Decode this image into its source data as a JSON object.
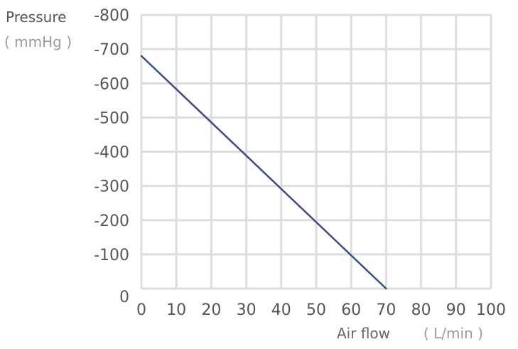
{
  "chart_data": {
    "type": "line",
    "ylabel": "Pressure",
    "ylabel_unit": "( mmHg )",
    "xlabel": "Air flow",
    "xlabel_unit": "( L/min )",
    "xlim": [
      0,
      100
    ],
    "ylim": [
      0,
      -800
    ],
    "x_ticks": [
      0,
      10,
      20,
      30,
      40,
      50,
      60,
      70,
      80,
      90,
      100
    ],
    "y_ticks": [
      0,
      -100,
      -200,
      -300,
      -400,
      -500,
      -600,
      -700,
      -800
    ],
    "grid": true,
    "series": [
      {
        "x": [
          0,
          70
        ],
        "y": [
          -680,
          0
        ],
        "color": "#3b4a8a"
      }
    ]
  }
}
